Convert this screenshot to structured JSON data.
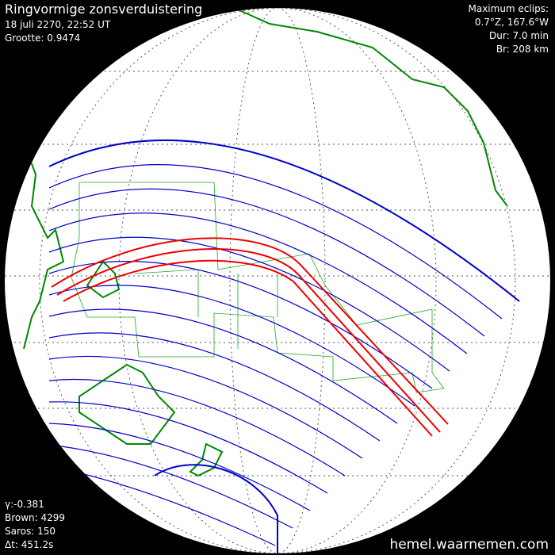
{
  "header": {
    "title": "Ringvormige zonsverduistering",
    "date": "18 juli 2270, 22:52 UT",
    "magnitude": "Grootte: 0.9474"
  },
  "maximum": {
    "label": "Maximum eclips:",
    "position": "0.7°Z, 167.6°W",
    "duration": "Dur: 7.0 min",
    "width": "Br: 208 km"
  },
  "parameters": {
    "gamma": "γ:-0.381",
    "brown": "Brown: 4299",
    "saros": "Saros: 150",
    "delta_t": "Δt: 451.2s"
  },
  "footer": {
    "site": "hemel.waarnemen.com"
  }
}
